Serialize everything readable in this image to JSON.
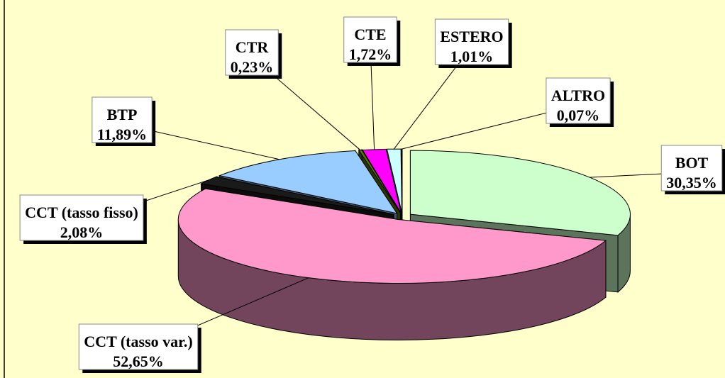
{
  "chart_data": {
    "type": "pie3d",
    "categories": [
      "BOT",
      "CCT (tasso var.)",
      "CCT (tasso fisso)",
      "BTP",
      "CTR",
      "CTE",
      "ESTERO",
      "ALTRO"
    ],
    "values": [
      30.35,
      52.65,
      2.08,
      11.89,
      0.23,
      1.72,
      1.01,
      0.07
    ],
    "value_labels": [
      "30,35%",
      "52,65%",
      "2,08%",
      "11,89%",
      "0,23%",
      "1,72%",
      "1,01%",
      "0,07%"
    ],
    "colors": [
      "#ccffcc",
      "#ff99cc",
      "#1a1a1a",
      "#99ccff",
      "#5c7a00",
      "#ff00ff",
      "#ccffff",
      "#000080"
    ]
  }
}
